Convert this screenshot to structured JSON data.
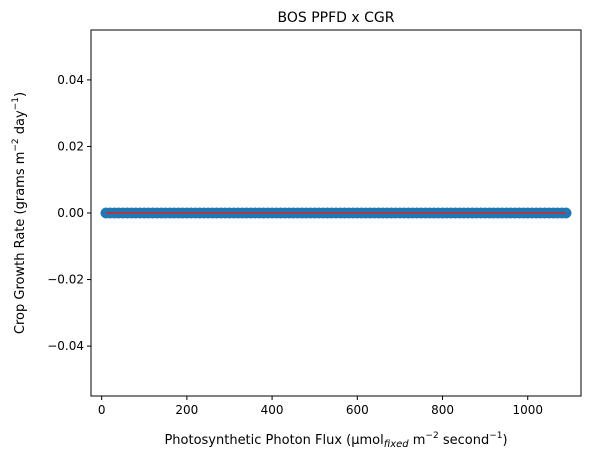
{
  "chart_data": {
    "type": "scatter",
    "title": "BOS PPFD x CGR",
    "xlabel": {
      "prefix": "Photosynthetic Photon Flux (µmol",
      "sub": "fixed",
      "mid": " m",
      "sup1": "−2",
      "mid2": " second",
      "sup2": "−1",
      "suffix": ")"
    },
    "ylabel": {
      "prefix": "Crop Growth Rate (grams m",
      "sup1": "−2",
      "mid": " day",
      "sup2": "−1",
      "suffix": ")"
    },
    "xlim": [
      -25,
      1125
    ],
    "ylim": [
      -0.055,
      0.055
    ],
    "xticks": [
      0,
      200,
      400,
      600,
      800,
      1000
    ],
    "xtick_labels": [
      "0",
      "200",
      "400",
      "600",
      "800",
      "1000"
    ],
    "yticks": [
      0.04,
      0.02,
      0.0,
      -0.02,
      -0.04
    ],
    "ytick_labels": [
      "0.04",
      "0.02",
      "0.00",
      "−0.02",
      "−0.04"
    ],
    "grid": false,
    "series": [
      {
        "marker_color": "#1f77b4",
        "x_start": 10,
        "x_end": 1090,
        "x_step": 10,
        "y_value": 0.0
      }
    ],
    "fit_line": {
      "color": "#d62728",
      "x": [
        10,
        1090
      ],
      "y": [
        0.0,
        0.0
      ]
    }
  }
}
